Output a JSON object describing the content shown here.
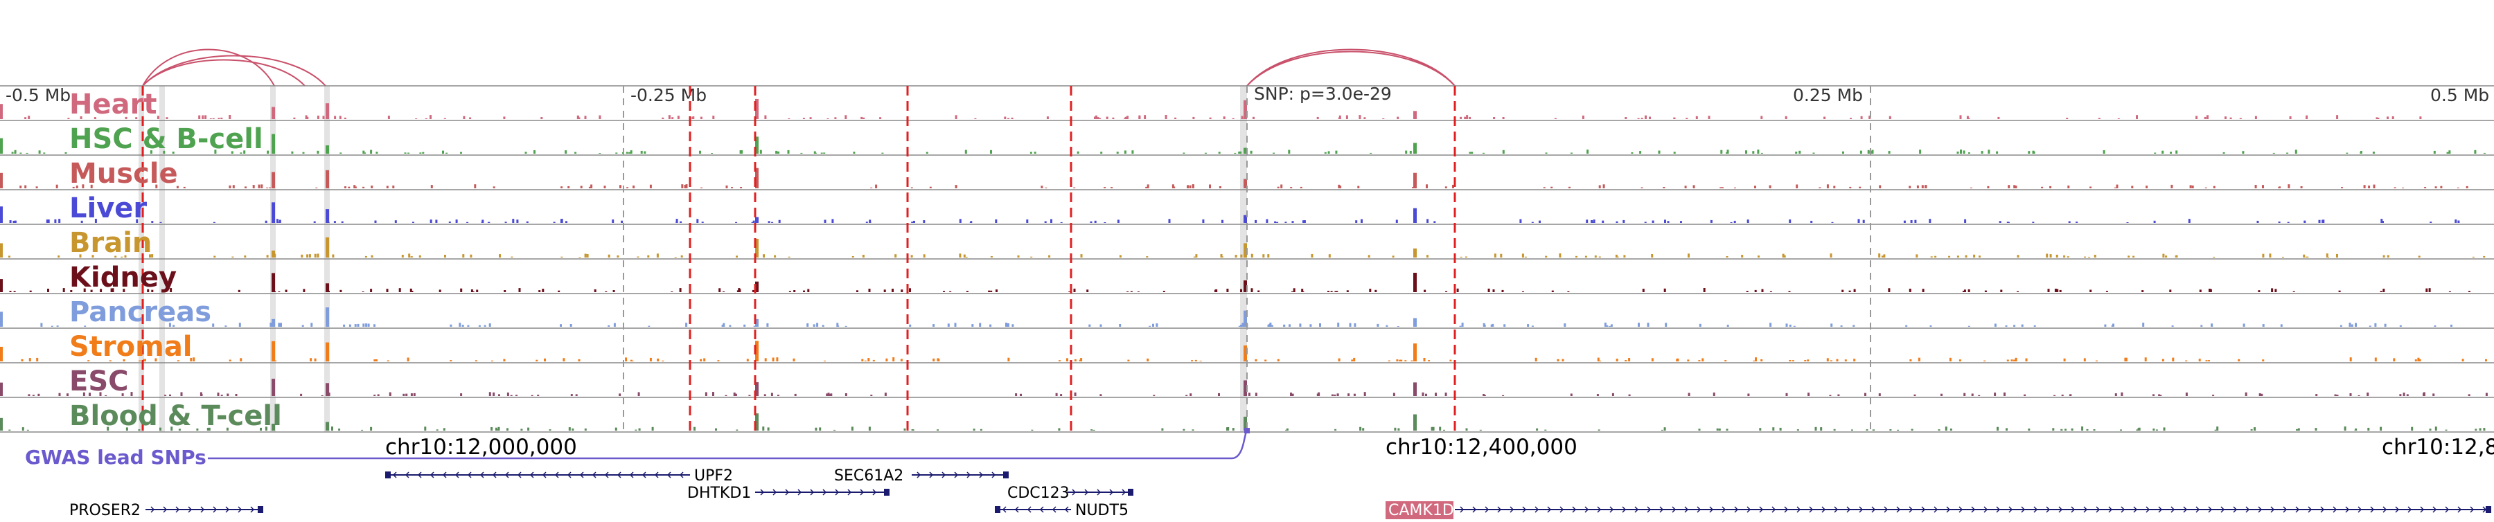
{
  "chart_data": {
    "type": "genome-browser-tracks",
    "chromosome": "chr10",
    "ruler": {
      "labels": [
        "-0.5 Mb",
        "-0.25 Mb",
        "0.25 Mb",
        "0.5 Mb"
      ]
    },
    "snp_annotation": "SNP: p=3.0e-29",
    "tracks": [
      {
        "name": "Heart",
        "color": "#d1697e"
      },
      {
        "name": "HSC & B-cell",
        "color": "#4fa24f"
      },
      {
        "name": "Muscle",
        "color": "#c65a5a"
      },
      {
        "name": "Liver",
        "color": "#4a4ad6"
      },
      {
        "name": "Brain",
        "color": "#c8962e"
      },
      {
        "name": "Kidney",
        "color": "#6b0f1a"
      },
      {
        "name": "Pancreas",
        "color": "#7f9ddc"
      },
      {
        "name": "Stromal",
        "color": "#f07c1a"
      },
      {
        "name": "ESC",
        "color": "#8a4a6a"
      },
      {
        "name": "Blood & T-cell",
        "color": "#5b8a5b"
      }
    ],
    "coordinates": [
      "chr10:12,000,000",
      "chr10:12,400,000",
      "chr10:12,8"
    ],
    "gwas_label": "GWAS lead SNPs",
    "genes": [
      {
        "name": "UPF2",
        "strand": "-"
      },
      {
        "name": "SEC61A2",
        "strand": "+"
      },
      {
        "name": "DHTKD1",
        "strand": "+"
      },
      {
        "name": "CDC123",
        "strand": "+"
      },
      {
        "name": "PROSER2",
        "strand": "+"
      },
      {
        "name": "NUDT5",
        "strand": "-"
      },
      {
        "name": "CAMK1D",
        "strand": "+"
      }
    ],
    "colors": {
      "loop": "#c9506a",
      "highlight_dashed": "#e02020",
      "gwas": "#6a5acd",
      "gene_feature": "#1a1a6e"
    }
  }
}
